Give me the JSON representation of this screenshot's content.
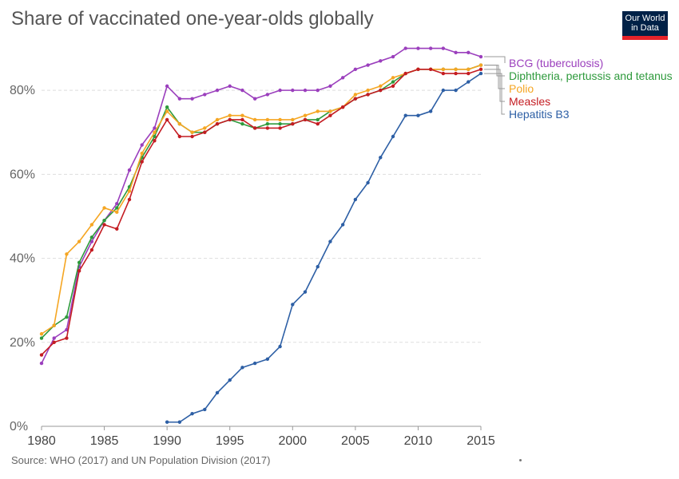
{
  "title": "Share of vaccinated one-year-olds globally",
  "logo": {
    "line1": "Our World",
    "line2": "in Data",
    "bg_color": "#002147",
    "accent_color": "#e6232a"
  },
  "source": "Source: WHO (2017) and UN Population Division (2017)",
  "chart_data": {
    "type": "line",
    "title": "Share of vaccinated one-year-olds globally",
    "xlabel": "",
    "ylabel": "",
    "xlim": [
      1980,
      2015
    ],
    "ylim": [
      0,
      90
    ],
    "x_ticks": [
      1980,
      1985,
      1990,
      1995,
      2000,
      2005,
      2010,
      2015
    ],
    "y_ticks": [
      0,
      20,
      40,
      60,
      80
    ],
    "y_tick_labels": [
      "0%",
      "20%",
      "40%",
      "60%",
      "80%"
    ],
    "grid": "horizontal dashed",
    "legend_placement": "right",
    "series": [
      {
        "name": "BCG (tuberculosis)",
        "color": "#9b3fbd",
        "x": [
          1980,
          1981,
          1982,
          1983,
          1984,
          1985,
          1986,
          1987,
          1988,
          1989,
          1990,
          1991,
          1992,
          1993,
          1994,
          1995,
          1996,
          1997,
          1998,
          1999,
          2000,
          2001,
          2002,
          2003,
          2004,
          2005,
          2006,
          2007,
          2008,
          2009,
          2010,
          2011,
          2012,
          2013,
          2014,
          2015
        ],
        "values": [
          15,
          21,
          23,
          38,
          44,
          49,
          53,
          61,
          67,
          71,
          81,
          78,
          78,
          79,
          80,
          81,
          80,
          78,
          79,
          80,
          80,
          80,
          80,
          81,
          83,
          85,
          86,
          87,
          88,
          90,
          90,
          90,
          90,
          89,
          89,
          88
        ]
      },
      {
        "name": "Diphtheria, pertussis and tetanus",
        "color": "#2e9a3c",
        "x": [
          1980,
          1981,
          1982,
          1983,
          1984,
          1985,
          1986,
          1987,
          1988,
          1989,
          1990,
          1991,
          1992,
          1993,
          1994,
          1995,
          1996,
          1997,
          1998,
          1999,
          2000,
          2001,
          2002,
          2003,
          2004,
          2005,
          2006,
          2007,
          2008,
          2009,
          2010,
          2011,
          2012,
          2013,
          2014,
          2015
        ],
        "values": [
          21,
          24,
          26,
          39,
          45,
          49,
          52,
          57,
          64,
          69,
          76,
          72,
          70,
          70,
          72,
          73,
          72,
          71,
          72,
          72,
          72,
          73,
          73,
          75,
          76,
          78,
          79,
          80,
          82,
          84,
          85,
          85,
          85,
          85,
          85,
          86
        ]
      },
      {
        "name": "Polio",
        "color": "#f5a623",
        "x": [
          1980,
          1981,
          1982,
          1983,
          1984,
          1985,
          1986,
          1987,
          1988,
          1989,
          1990,
          1991,
          1992,
          1993,
          1994,
          1995,
          1996,
          1997,
          1998,
          1999,
          2000,
          2001,
          2002,
          2003,
          2004,
          2005,
          2006,
          2007,
          2008,
          2009,
          2010,
          2011,
          2012,
          2013,
          2014,
          2015
        ],
        "values": [
          22,
          24,
          41,
          44,
          48,
          52,
          51,
          56,
          65,
          70,
          75,
          72,
          70,
          71,
          73,
          74,
          74,
          73,
          73,
          73,
          73,
          74,
          75,
          75,
          76,
          79,
          80,
          81,
          83,
          84,
          85,
          85,
          85,
          85,
          85,
          86
        ]
      },
      {
        "name": "Measles",
        "color": "#c41c22",
        "x": [
          1980,
          1981,
          1982,
          1983,
          1984,
          1985,
          1986,
          1987,
          1988,
          1989,
          1990,
          1991,
          1992,
          1993,
          1994,
          1995,
          1996,
          1997,
          1998,
          1999,
          2000,
          2001,
          2002,
          2003,
          2004,
          2005,
          2006,
          2007,
          2008,
          2009,
          2010,
          2011,
          2012,
          2013,
          2014,
          2015
        ],
        "values": [
          17,
          20,
          21,
          37,
          42,
          48,
          47,
          54,
          63,
          68,
          73,
          69,
          69,
          70,
          72,
          73,
          73,
          71,
          71,
          71,
          72,
          73,
          72,
          74,
          76,
          78,
          79,
          80,
          81,
          84,
          85,
          85,
          84,
          84,
          84,
          85
        ]
      },
      {
        "name": "Hepatitis B3",
        "color": "#2d5fa5",
        "x": [
          1990,
          1991,
          1992,
          1993,
          1994,
          1995,
          1996,
          1997,
          1998,
          1999,
          2000,
          2001,
          2002,
          2003,
          2004,
          2005,
          2006,
          2007,
          2008,
          2009,
          2010,
          2011,
          2012,
          2013,
          2014,
          2015
        ],
        "values": [
          1,
          1,
          3,
          4,
          8,
          11,
          14,
          15,
          16,
          19,
          29,
          32,
          38,
          44,
          48,
          54,
          58,
          64,
          69,
          74,
          74,
          75,
          80,
          80,
          82,
          84
        ]
      }
    ]
  }
}
